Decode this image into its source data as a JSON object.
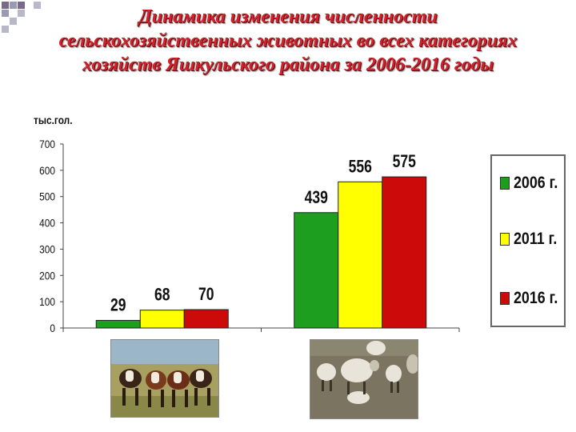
{
  "title": {
    "line1": "Динамика изменения численности",
    "line2": "сельскохозяйственных животных во всех категориях",
    "line3": "хозяйств Яшкульского района за 2006-2016 годы"
  },
  "colors": {
    "title": "#d4202a",
    "series": [
      "#1e9e1e",
      "#ffff00",
      "#cc0a0a"
    ]
  },
  "chart_data": {
    "type": "bar",
    "title": "Динамика изменения численности сельскохозяйственных животных во всех категориях хозяйств Яшкульского района за 2006-2016 годы",
    "ylabel": "тыс.гол.",
    "xlabel": "",
    "ylim": [
      0,
      700
    ],
    "yticks": [
      "0",
      "100",
      "200",
      "300",
      "400",
      "500",
      "600",
      "700"
    ],
    "grid": false,
    "legend_position": "right",
    "categories": [
      "",
      ""
    ],
    "category_images": [
      "cattle-photo",
      "sheep-photo"
    ],
    "series": [
      {
        "name": "2006 г.",
        "values": [
          29,
          439
        ]
      },
      {
        "name": "2011 г.",
        "values": [
          68,
          556
        ]
      },
      {
        "name": "2016 г.",
        "values": [
          70,
          575
        ]
      }
    ]
  }
}
